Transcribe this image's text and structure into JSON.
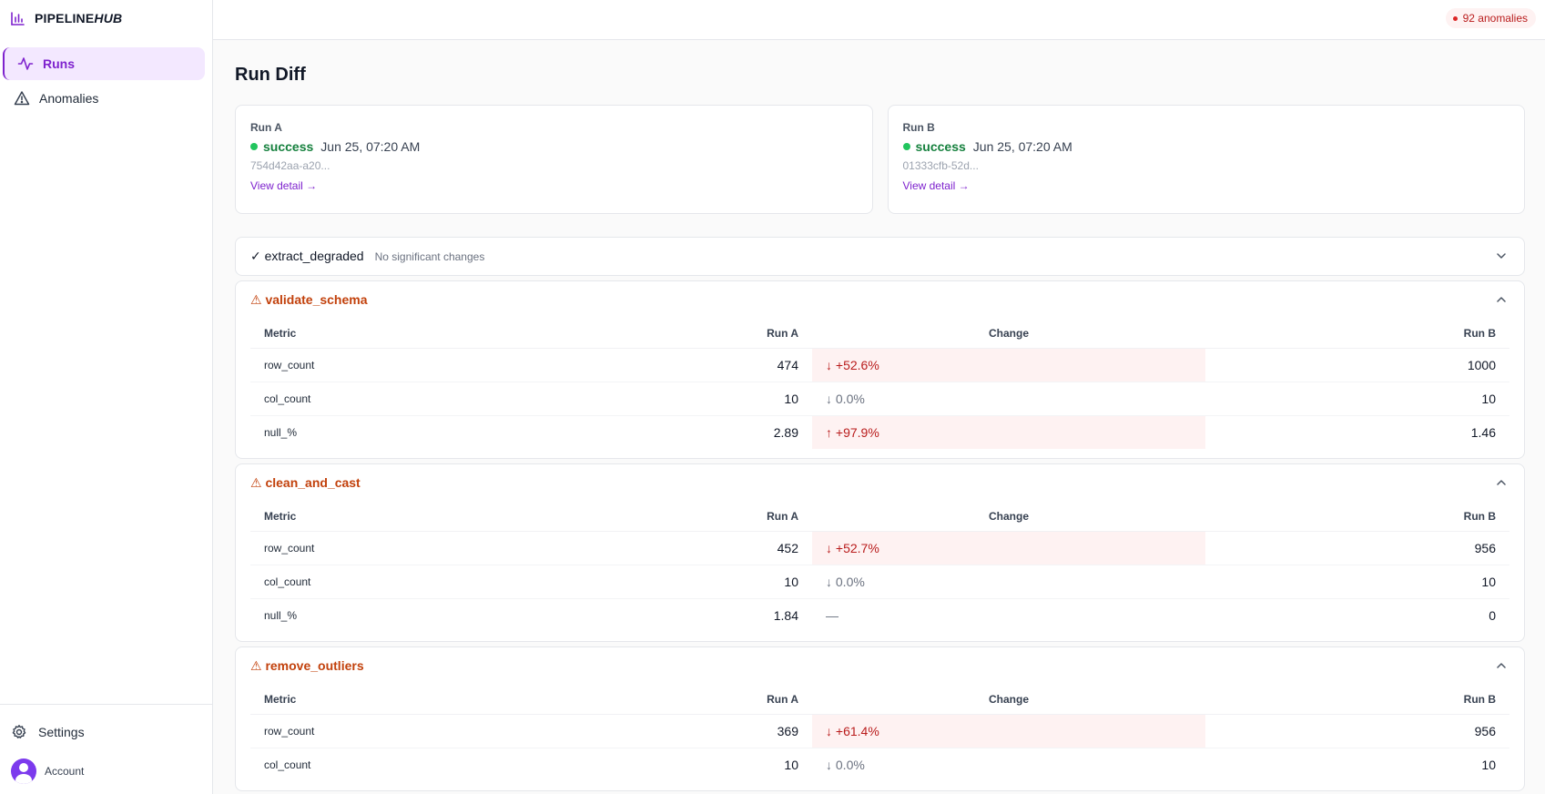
{
  "brand": {
    "name_main": "PIPELINE",
    "name_italic": "HUB"
  },
  "nav": {
    "items": [
      {
        "label": "Runs",
        "icon": "activity-icon",
        "active": true
      },
      {
        "label": "Anomalies",
        "icon": "alert-triangle-icon",
        "active": false
      }
    ],
    "settings_label": "Settings",
    "account_label": "Account"
  },
  "topbar": {
    "anomaly_badge": "92 anomalies"
  },
  "page": {
    "title": "Run Diff"
  },
  "run_a": {
    "label": "Run A",
    "status": "success",
    "time": "Jun 25, 07:20 AM",
    "id": "754d42aa-a20...",
    "link": "View detail →"
  },
  "run_b": {
    "label": "Run B",
    "status": "success",
    "time": "Jun 25, 07:20 AM",
    "id": "01333cfb-52d...",
    "link": "View detail →"
  },
  "columns": {
    "metric": "Metric",
    "run_a": "Run A",
    "change": "Change",
    "run_b": "Run B"
  },
  "steps": [
    {
      "name": "✓ extract_degraded",
      "note": "No significant changes"
    },
    {
      "name": "⚠ validate_schema",
      "rows": [
        {
          "metric": "row_count",
          "a": "474",
          "change": "↓ +52.6%",
          "b": "1000"
        },
        {
          "metric": "col_count",
          "a": "10",
          "change": "↓ 0.0%",
          "b": "10"
        },
        {
          "metric": "null_%",
          "a": "2.89",
          "change": "↑ +97.9%",
          "b": "1.46"
        }
      ]
    },
    {
      "name": "⚠ clean_and_cast",
      "rows": [
        {
          "metric": "row_count",
          "a": "452",
          "change": "↓ +52.7%",
          "b": "956"
        },
        {
          "metric": "col_count",
          "a": "10",
          "change": "↓ 0.0%",
          "b": "10"
        },
        {
          "metric": "null_%",
          "a": "1.84",
          "change": "—",
          "b": "0"
        }
      ]
    },
    {
      "name": "⚠ remove_outliers",
      "rows": [
        {
          "metric": "row_count",
          "a": "369",
          "change": "↓ +61.4%",
          "b": "956"
        },
        {
          "metric": "col_count",
          "a": "10",
          "change": "↓ 0.0%",
          "b": "10"
        }
      ]
    }
  ],
  "colors": {
    "accent": "#7e22ce",
    "warning": "#c2410c",
    "success": "#22c55e",
    "danger": "#b91c1c"
  }
}
